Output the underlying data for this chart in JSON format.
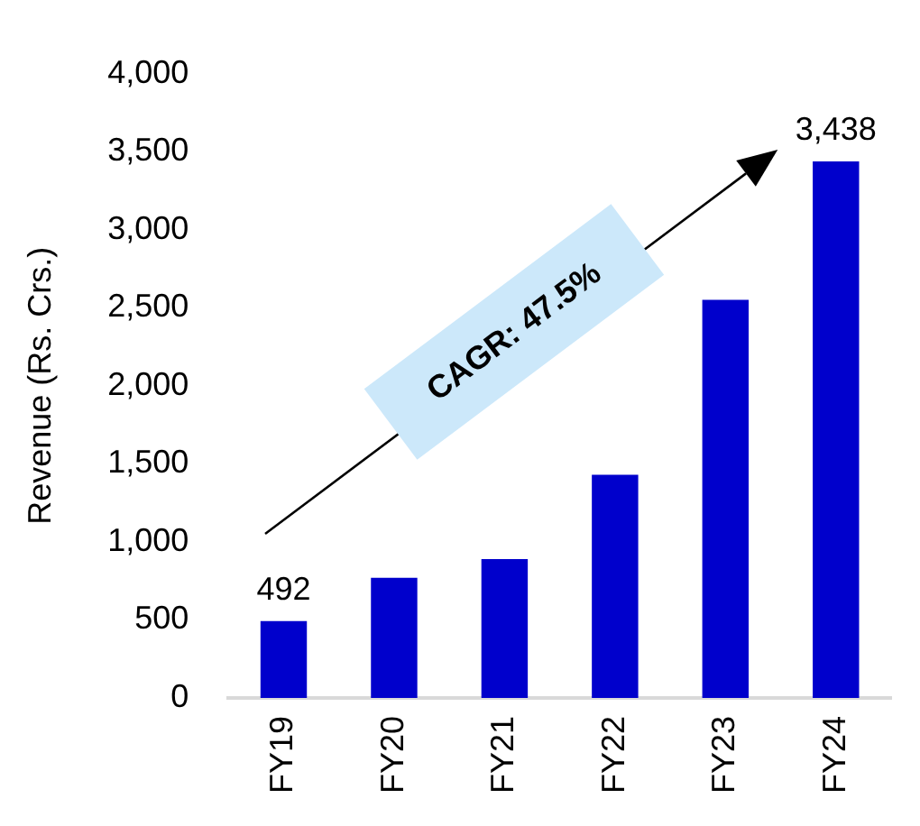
{
  "chart_data": {
    "type": "bar",
    "ylabel": "Revenue (Rs. Crs.)",
    "categories": [
      "FY19",
      "FY20",
      "FY21",
      "FY22",
      "FY23",
      "FY24"
    ],
    "values": [
      492,
      770,
      890,
      1430,
      2550,
      3438
    ],
    "value_labels": [
      "492",
      null,
      null,
      null,
      null,
      "3,438"
    ],
    "color": "#0000cc",
    "ylim": [
      0,
      4000
    ],
    "yticks": [
      {
        "value": 0,
        "label": "0"
      },
      {
        "value": 500,
        "label": "500"
      },
      {
        "value": 1000,
        "label": "1,000"
      },
      {
        "value": 1500,
        "label": "1,500"
      },
      {
        "value": 2000,
        "label": "2,000"
      },
      {
        "value": 2500,
        "label": "2,500"
      },
      {
        "value": 3000,
        "label": "3,000"
      },
      {
        "value": 3500,
        "label": "3,500"
      },
      {
        "value": 4000,
        "label": "4,000"
      }
    ],
    "grid": false,
    "legend": false,
    "annotations": [
      "CAGR: 47.5%"
    ]
  }
}
